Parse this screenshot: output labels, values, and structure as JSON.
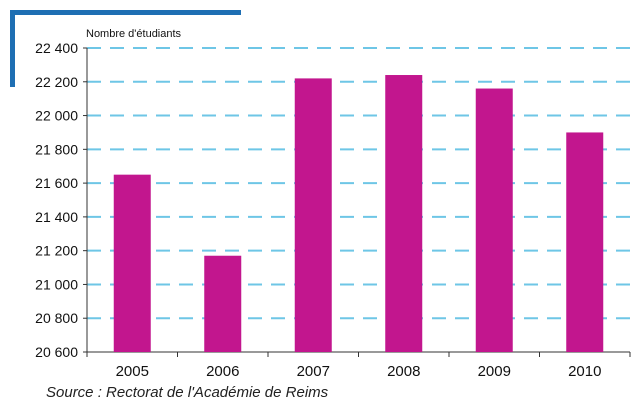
{
  "chart_data": {
    "type": "bar",
    "categories": [
      "2005",
      "2006",
      "2007",
      "2008",
      "2009",
      "2010"
    ],
    "values": [
      21650,
      21170,
      22220,
      22240,
      22160,
      21900
    ],
    "ylabel": "Nombre d'étudiants",
    "ylim": [
      20600,
      22400
    ],
    "yticks": [
      20600,
      20800,
      21000,
      21200,
      21400,
      21600,
      21800,
      22000,
      22200,
      22400
    ],
    "ytick_labels": [
      "20 600",
      "20 800",
      "21 000",
      "21 200",
      "21 400",
      "21 600",
      "21 800",
      "22 000",
      "22 200",
      "22 400"
    ],
    "grid": true,
    "bar_color": "#c2168e",
    "grid_color": "#6ec6e6",
    "frame_color": "#1e6fb3"
  },
  "source": "Source : Rectorat de l'Académie de Reims"
}
